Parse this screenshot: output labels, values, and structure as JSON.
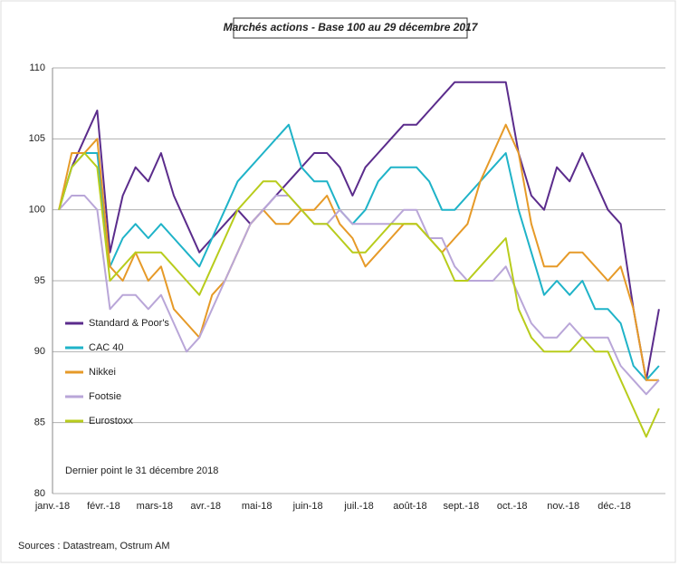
{
  "chart_data": {
    "type": "line",
    "title": "Marchés actions - Base 100 au 29 décembre 2017",
    "annotation": "Dernier point le 31 décembre 2018",
    "source": "Sources : Datastream, Ostrum AM",
    "categories": [
      "janv.-18",
      null,
      null,
      null,
      "févr.-18",
      null,
      null,
      null,
      "mars-18",
      null,
      null,
      null,
      "avr.-18",
      null,
      null,
      null,
      "mai-18",
      null,
      null,
      null,
      "juin-18",
      null,
      null,
      null,
      "juil.-18",
      null,
      null,
      null,
      "août-18",
      null,
      null,
      null,
      "sept.-18",
      null,
      null,
      null,
      "oct.-18",
      null,
      null,
      null,
      "nov.-18",
      null,
      null,
      null,
      "déc.-18",
      null,
      null,
      null
    ],
    "ylim": [
      80,
      110
    ],
    "yticks": [
      80,
      85,
      90,
      95,
      100,
      105,
      110
    ],
    "grid": true,
    "legend": "left",
    "series": [
      {
        "name": "Standard & Poor's",
        "color": "#5b2c8c",
        "values": [
          100,
          103,
          105,
          107,
          97,
          101,
          103,
          102,
          104,
          101,
          99,
          97,
          98,
          99,
          100,
          99,
          100,
          101,
          102,
          103,
          104,
          104,
          103,
          101,
          103,
          104,
          105,
          106,
          106,
          107,
          108,
          109,
          109,
          109,
          109,
          109,
          104,
          101,
          100,
          103,
          102,
          104,
          102,
          100,
          99,
          93,
          88,
          93
        ]
      },
      {
        "name": "CAC 40",
        "color": "#1fb3c8",
        "values": [
          100,
          103,
          104,
          104,
          96,
          98,
          99,
          98,
          99,
          98,
          97,
          96,
          98,
          100,
          102,
          103,
          104,
          105,
          106,
          103,
          102,
          102,
          100,
          99,
          100,
          102,
          103,
          103,
          103,
          102,
          100,
          100,
          101,
          102,
          103,
          104,
          100,
          97,
          94,
          95,
          94,
          95,
          93,
          93,
          92,
          89,
          88,
          89
        ]
      },
      {
        "name": "Nikkei",
        "color": "#e69a28",
        "values": [
          100,
          104,
          104,
          105,
          96,
          95,
          97,
          95,
          96,
          93,
          92,
          91,
          94,
          95,
          97,
          99,
          100,
          99,
          99,
          100,
          100,
          101,
          99,
          98,
          96,
          97,
          98,
          99,
          99,
          98,
          97,
          98,
          99,
          102,
          104,
          106,
          104,
          99,
          96,
          96,
          97,
          97,
          96,
          95,
          96,
          93,
          88,
          88
        ]
      },
      {
        "name": "Footsie",
        "color": "#b9a6d8",
        "values": [
          100,
          101,
          101,
          100,
          93,
          94,
          94,
          93,
          94,
          92,
          90,
          91,
          93,
          95,
          97,
          99,
          100,
          101,
          101,
          100,
          99,
          99,
          100,
          99,
          99,
          99,
          99,
          100,
          100,
          98,
          98,
          96,
          95,
          95,
          95,
          96,
          94,
          92,
          91,
          91,
          92,
          91,
          91,
          91,
          89,
          88,
          87,
          88
        ]
      },
      {
        "name": "Eurostoxx",
        "color": "#b8cc1c",
        "values": [
          100,
          103,
          104,
          103,
          95,
          96,
          97,
          97,
          97,
          96,
          95,
          94,
          96,
          98,
          100,
          101,
          102,
          102,
          101,
          100,
          99,
          99,
          98,
          97,
          97,
          98,
          99,
          99,
          99,
          98,
          97,
          95,
          95,
          96,
          97,
          98,
          93,
          91,
          90,
          90,
          90,
          91,
          90,
          90,
          88,
          86,
          84,
          86
        ]
      }
    ]
  }
}
